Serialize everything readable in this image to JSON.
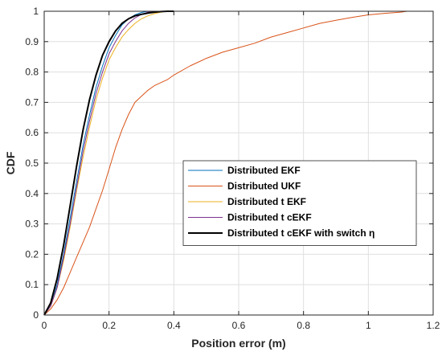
{
  "chart_data": {
    "type": "line",
    "xlabel": "Position error (m)",
    "ylabel": "CDF",
    "xlim": [
      0,
      1.2
    ],
    "ylim": [
      0,
      1
    ],
    "xticks": [
      0,
      0.2,
      0.4,
      0.6,
      0.8,
      1,
      1.2
    ],
    "xtick_labels": [
      "0",
      "0.2",
      "0.4",
      "0.6",
      "0.8",
      "1",
      "1.2"
    ],
    "yticks": [
      0,
      0.1,
      0.2,
      0.3,
      0.4,
      0.5,
      0.6,
      0.7,
      0.8,
      0.9,
      1
    ],
    "ytick_labels": [
      "0",
      "0.1",
      "0.2",
      "0.3",
      "0.4",
      "0.5",
      "0.6",
      "0.7",
      "0.8",
      "0.9",
      "1"
    ],
    "grid": true,
    "legend_position": "center-right",
    "series": [
      {
        "name": "Distributed EKF",
        "color": "#0072BD",
        "stroke_weight": "normal",
        "x": [
          0,
          0.02,
          0.04,
          0.06,
          0.08,
          0.1,
          0.12,
          0.14,
          0.16,
          0.18,
          0.2,
          0.22,
          0.24,
          0.26,
          0.28,
          0.3,
          0.32
        ],
        "y": [
          0,
          0.03,
          0.1,
          0.2,
          0.32,
          0.44,
          0.56,
          0.66,
          0.75,
          0.82,
          0.88,
          0.92,
          0.955,
          0.975,
          0.988,
          0.996,
          1
        ]
      },
      {
        "name": "Distributed UKF",
        "color": "#D95319",
        "stroke_weight": "normal",
        "x": [
          0,
          0.02,
          0.04,
          0.06,
          0.08,
          0.1,
          0.12,
          0.14,
          0.16,
          0.18,
          0.2,
          0.22,
          0.24,
          0.26,
          0.28,
          0.3,
          0.32,
          0.34,
          0.36,
          0.38,
          0.4,
          0.45,
          0.5,
          0.55,
          0.6,
          0.65,
          0.7,
          0.75,
          0.8,
          0.85,
          0.9,
          0.95,
          1,
          1.05,
          1.1,
          1.12
        ],
        "y": [
          0,
          0.02,
          0.05,
          0.09,
          0.14,
          0.19,
          0.24,
          0.29,
          0.35,
          0.41,
          0.48,
          0.55,
          0.61,
          0.66,
          0.7,
          0.72,
          0.74,
          0.755,
          0.765,
          0.775,
          0.79,
          0.82,
          0.845,
          0.865,
          0.88,
          0.895,
          0.915,
          0.93,
          0.945,
          0.96,
          0.97,
          0.98,
          0.988,
          0.993,
          0.997,
          1
        ]
      },
      {
        "name": "Distributed t EKF",
        "color": "#EDB120",
        "stroke_weight": "normal",
        "x": [
          0,
          0.02,
          0.04,
          0.06,
          0.08,
          0.1,
          0.12,
          0.14,
          0.16,
          0.18,
          0.2,
          0.22,
          0.24,
          0.26,
          0.28,
          0.3,
          0.32,
          0.34,
          0.36,
          0.38
        ],
        "y": [
          0,
          0.03,
          0.09,
          0.18,
          0.29,
          0.41,
          0.52,
          0.62,
          0.71,
          0.78,
          0.84,
          0.88,
          0.915,
          0.94,
          0.96,
          0.975,
          0.985,
          0.992,
          0.997,
          1
        ]
      },
      {
        "name": "Distributed t cEKF",
        "color": "#7E2F8E",
        "stroke_weight": "normal",
        "x": [
          0,
          0.02,
          0.04,
          0.06,
          0.08,
          0.1,
          0.12,
          0.14,
          0.16,
          0.18,
          0.2,
          0.22,
          0.24,
          0.26,
          0.28,
          0.3,
          0.32,
          0.335
        ],
        "y": [
          0,
          0.03,
          0.09,
          0.19,
          0.3,
          0.42,
          0.54,
          0.64,
          0.73,
          0.8,
          0.86,
          0.9,
          0.935,
          0.96,
          0.978,
          0.99,
          0.997,
          1
        ]
      },
      {
        "name": "Distributed t cEKF with switch η",
        "color": "#000000",
        "stroke_weight": "bold",
        "x": [
          0,
          0.02,
          0.04,
          0.06,
          0.08,
          0.1,
          0.12,
          0.14,
          0.16,
          0.18,
          0.2,
          0.22,
          0.24,
          0.26,
          0.28,
          0.3,
          0.32,
          0.34,
          0.36,
          0.38,
          0.4
        ],
        "y": [
          0,
          0.04,
          0.12,
          0.23,
          0.36,
          0.49,
          0.61,
          0.71,
          0.79,
          0.855,
          0.9,
          0.935,
          0.96,
          0.975,
          0.985,
          0.99,
          0.994,
          0.997,
          0.999,
          1,
          1
        ]
      }
    ]
  }
}
